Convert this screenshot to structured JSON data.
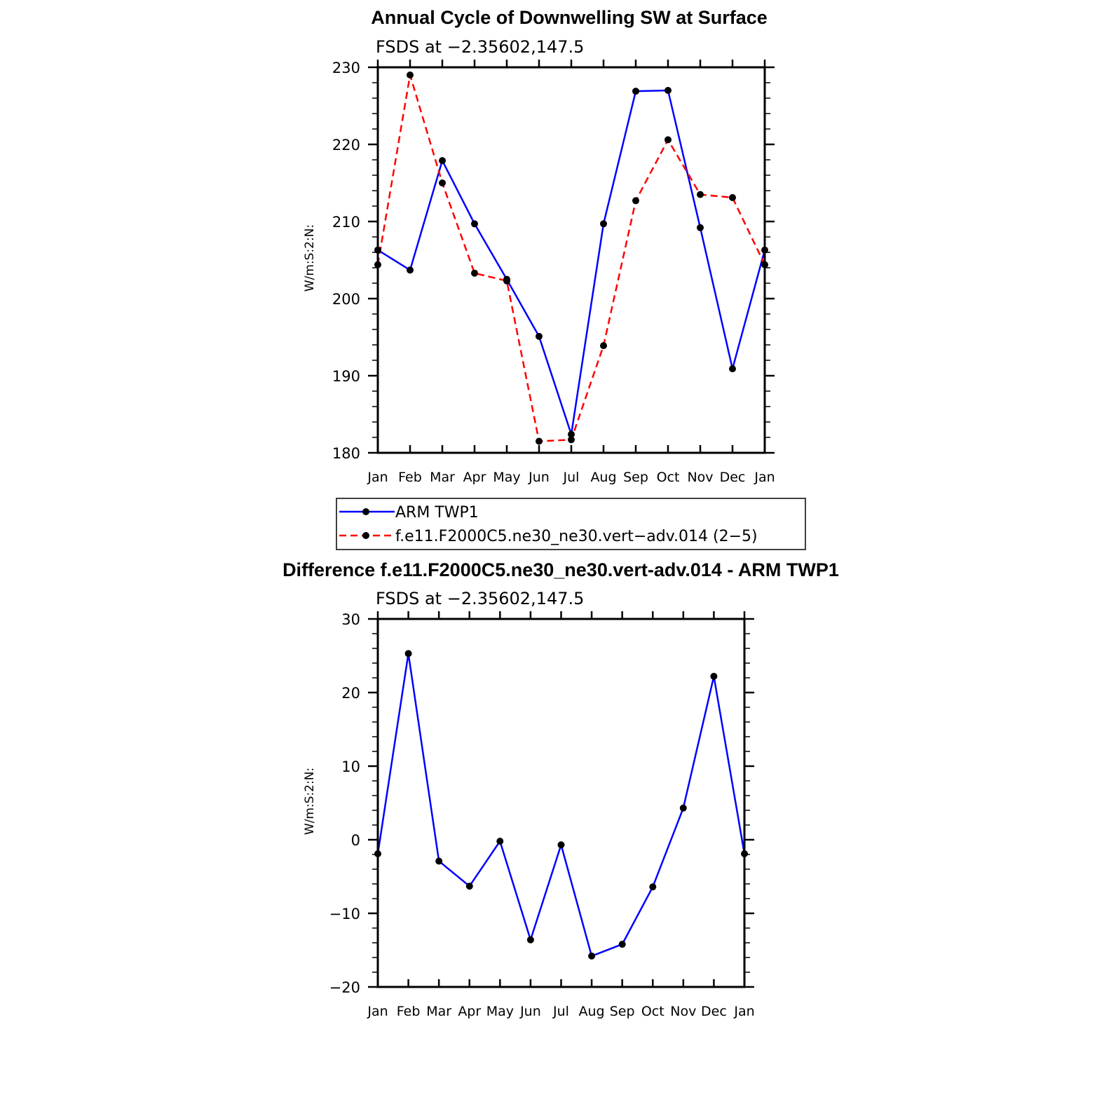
{
  "chart_data": [
    {
      "type": "line",
      "title": "Annual Cycle of Downwelling SW at Surface",
      "subtitle": "FSDS at −2.35602,147.5",
      "ylabel": "W/m:S:2:N:",
      "xlabel": "",
      "ylim": [
        180,
        230
      ],
      "yticks": [
        "180",
        "190",
        "200",
        "210",
        "220",
        "230"
      ],
      "categories": [
        "Jan",
        "Feb",
        "Mar",
        "Apr",
        "May",
        "Jun",
        "Jul",
        "Aug",
        "Sep",
        "Oct",
        "Nov",
        "Dec",
        "Jan"
      ],
      "series": [
        {
          "name": "ARM TWP1",
          "color": "#0000ff",
          "dash": "solid",
          "values": [
            206.3,
            203.7,
            217.9,
            209.7,
            202.5,
            195.1,
            182.4,
            209.7,
            226.9,
            227.0,
            209.2,
            190.9,
            206.3
          ]
        },
        {
          "name": "f.e11.F2000C5.ne30_ne30.vert−adv.014 (2−5)",
          "color": "#ff0000",
          "dash": "dashed",
          "values": [
            204.4,
            229.0,
            215.0,
            203.3,
            202.3,
            181.5,
            181.7,
            193.9,
            212.7,
            220.6,
            213.5,
            213.1,
            204.4
          ]
        }
      ],
      "legend": {
        "placement": "below",
        "entries": [
          "ARM TWP1",
          "f.e11.F2000C5.ne30_ne30.vert−adv.014 (2−5)"
        ]
      },
      "grid": false
    },
    {
      "type": "line",
      "title": "Difference f.e11.F2000C5.ne30_ne30.vert-adv.014 - ARM TWP1",
      "subtitle": "FSDS at −2.35602,147.5",
      "ylabel": "W/m:S:2:N:",
      "xlabel": "",
      "ylim": [
        -20,
        30
      ],
      "yticks": [
        "−20",
        "−10",
        "0",
        "10",
        "20",
        "30"
      ],
      "categories": [
        "Jan",
        "Feb",
        "Mar",
        "Apr",
        "May",
        "Jun",
        "Jul",
        "Aug",
        "Sep",
        "Oct",
        "Nov",
        "Dec",
        "Jan"
      ],
      "series": [
        {
          "color": "#0000ff",
          "dash": "solid",
          "values": [
            -1.9,
            25.3,
            -2.9,
            -6.3,
            -0.2,
            -13.6,
            -0.7,
            -15.8,
            -14.2,
            -6.4,
            4.3,
            22.2,
            -1.9
          ]
        }
      ],
      "grid": false
    }
  ]
}
